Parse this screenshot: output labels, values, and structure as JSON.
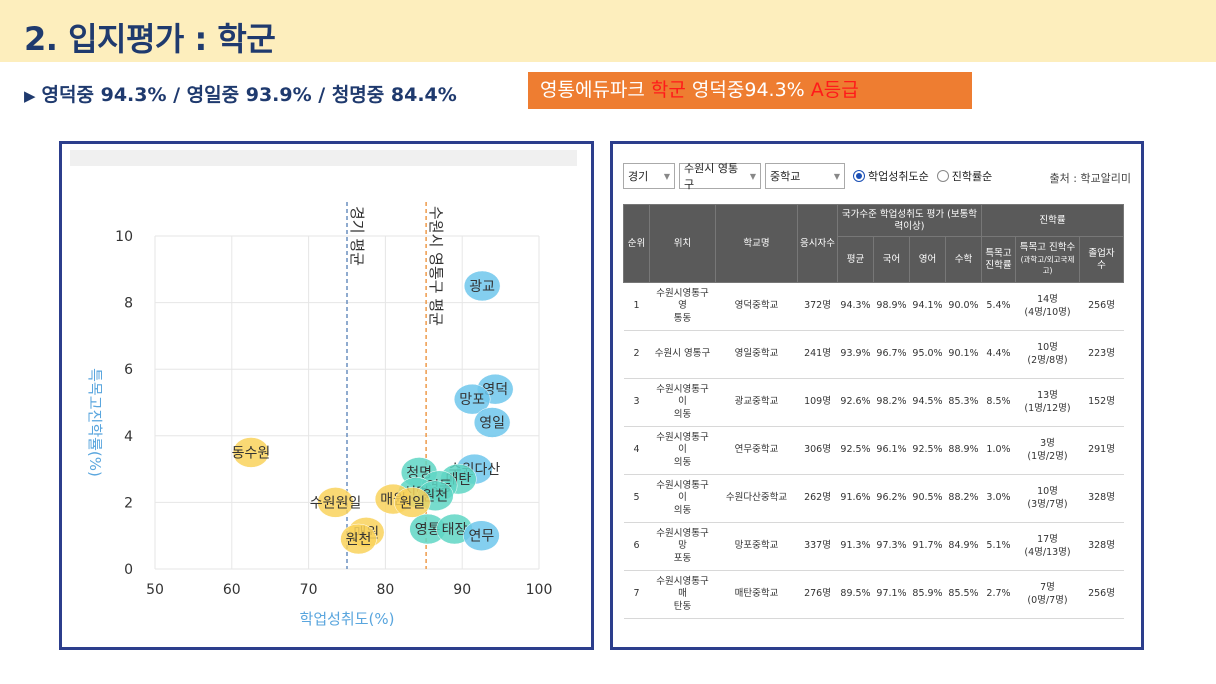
{
  "page_title": "2. 입지평가 : 학군",
  "subtitle": "영덕중 94.3% / 영일중 93.9% / 청명중 84.4%",
  "highlight": {
    "part1": "영통에듀파크 ",
    "part2": "학군",
    "part3": " 영덕중94.3% ",
    "part4": "A등급"
  },
  "colors": {
    "title": "#1f3a6e",
    "accent": "#ee7d31",
    "panel_border": "#2c3e8c",
    "bubble_blue": "#6fc7ec",
    "bubble_teal": "#5fd6c4",
    "bubble_yellow": "#f9d25c",
    "red": "#ff1a1a"
  },
  "chart_data": {
    "type": "scatter",
    "xlabel": "학업성취도(%)",
    "ylabel": "특목고진학률(%)",
    "xlim": [
      50,
      100
    ],
    "ylim": [
      0,
      10
    ],
    "xticks": [
      "50",
      "60",
      "70",
      "80",
      "90",
      "100"
    ],
    "yticks": [
      "0",
      "2",
      "4",
      "6",
      "8",
      "10"
    ],
    "grid": true,
    "reference_lines": [
      {
        "label": "경기 평균",
        "x": 75.0,
        "color": "#6a8fbf"
      },
      {
        "label": "수원시 영통구 평균",
        "x": 85.3,
        "color": "#ee9a4a"
      }
    ],
    "points": [
      {
        "label": "광교",
        "x": 92.6,
        "y": 8.5,
        "color": "#6fc7ec"
      },
      {
        "label": "영덕",
        "x": 94.3,
        "y": 5.4,
        "color": "#6fc7ec"
      },
      {
        "label": "망포",
        "x": 91.3,
        "y": 5.1,
        "color": "#6fc7ec"
      },
      {
        "label": "영일",
        "x": 93.9,
        "y": 4.4,
        "color": "#6fc7ec"
      },
      {
        "label": "동수원",
        "x": 62.5,
        "y": 3.5,
        "color": "#f9d25c"
      },
      {
        "label": "수원다산",
        "x": 91.6,
        "y": 3.0,
        "color": "#6fc7ec"
      },
      {
        "label": "청명",
        "x": 84.4,
        "y": 2.9,
        "color": "#5fd6c4"
      },
      {
        "label": "매탄",
        "x": 89.5,
        "y": 2.7,
        "color": "#5fd6c4"
      },
      {
        "label": "영동",
        "x": 87.0,
        "y": 2.5,
        "color": "#5fd6c4"
      },
      {
        "label": "신명",
        "x": 84.0,
        "y": 2.3,
        "color": "#5fd6c4"
      },
      {
        "label": "원천",
        "x": 86.5,
        "y": 2.2,
        "color": "#5fd6c4"
      },
      {
        "label": "매원",
        "x": 81.0,
        "y": 2.1,
        "color": "#f9d25c"
      },
      {
        "label": "원일",
        "x": 83.5,
        "y": 2.0,
        "color": "#f9d25c"
      },
      {
        "label": "수원원일",
        "x": 73.5,
        "y": 2.0,
        "color": "#f9d25c"
      },
      {
        "label": "영통",
        "x": 85.5,
        "y": 1.2,
        "color": "#5fd6c4"
      },
      {
        "label": "태장",
        "x": 89.0,
        "y": 1.2,
        "color": "#5fd6c4"
      },
      {
        "label": "연무",
        "x": 92.5,
        "y": 1.0,
        "color": "#6fc7ec"
      },
      {
        "label": "매원",
        "x": 77.5,
        "y": 1.1,
        "color": "#f9d25c"
      },
      {
        "label": "원천",
        "x": 76.5,
        "y": 0.9,
        "color": "#f9d25c"
      }
    ]
  },
  "table_panel": {
    "filters": {
      "region": "경기",
      "district": "수원시 영통구",
      "level": "중학교"
    },
    "radio": {
      "opt1": "학업성취도순",
      "opt2": "진학률순"
    },
    "source": "출처 : 학교알리미",
    "headers": {
      "rank": "순위",
      "location": "위치",
      "school": "학교명",
      "test_count": "응시자수",
      "achievement_group": "국가수준 학업성취도 평가 (보통학력이상)",
      "avg": "평균",
      "korean": "국어",
      "english": "영어",
      "math": "수학",
      "advance_group": "진학률",
      "special_rate_l1": "특목고",
      "special_rate_l2": "진학률",
      "special_count_l1": "특목고 진학수",
      "special_count_l2": "(과학고/외고국제고)",
      "graduates_l1": "졸업자",
      "graduates_l2": "수"
    },
    "rows": [
      {
        "rank": "1",
        "loc1": "수원시영통구 영",
        "loc2": "통동",
        "school": "영덕중학교",
        "n": "372명",
        "avg": "94.3%",
        "kor": "98.9%",
        "eng": "94.1%",
        "math": "90.0%",
        "rate": "5.4%",
        "cnt1": "14명",
        "cnt2": "(4명/10명)",
        "grad": "256명"
      },
      {
        "rank": "2",
        "loc1": "수원시 영통구",
        "loc2": "",
        "school": "영일중학교",
        "n": "241명",
        "avg": "93.9%",
        "kor": "96.7%",
        "eng": "95.0%",
        "math": "90.1%",
        "rate": "4.4%",
        "cnt1": "10명",
        "cnt2": "(2명/8명)",
        "grad": "223명"
      },
      {
        "rank": "3",
        "loc1": "수원시영통구 이",
        "loc2": "의동",
        "school": "광교중학교",
        "n": "109명",
        "avg": "92.6%",
        "kor": "98.2%",
        "eng": "94.5%",
        "math": "85.3%",
        "rate": "8.5%",
        "cnt1": "13명",
        "cnt2": "(1명/12명)",
        "grad": "152명"
      },
      {
        "rank": "4",
        "loc1": "수원시영통구 이",
        "loc2": "의동",
        "school": "연무중학교",
        "n": "306명",
        "avg": "92.5%",
        "kor": "96.1%",
        "eng": "92.5%",
        "math": "88.9%",
        "rate": "1.0%",
        "cnt1": "3명",
        "cnt2": "(1명/2명)",
        "grad": "291명"
      },
      {
        "rank": "5",
        "loc1": "수원시영통구 이",
        "loc2": "의동",
        "school": "수원다산중학교",
        "n": "262명",
        "avg": "91.6%",
        "kor": "96.2%",
        "eng": "90.5%",
        "math": "88.2%",
        "rate": "3.0%",
        "cnt1": "10명",
        "cnt2": "(3명/7명)",
        "grad": "328명"
      },
      {
        "rank": "6",
        "loc1": "수원시영통구 망",
        "loc2": "포동",
        "school": "망포중학교",
        "n": "337명",
        "avg": "91.3%",
        "kor": "97.3%",
        "eng": "91.7%",
        "math": "84.9%",
        "rate": "5.1%",
        "cnt1": "17명",
        "cnt2": "(4명/13명)",
        "grad": "328명"
      },
      {
        "rank": "7",
        "loc1": "수원시영통구 매",
        "loc2": "탄동",
        "school": "매탄중학교",
        "n": "276명",
        "avg": "89.5%",
        "kor": "97.1%",
        "eng": "85.9%",
        "math": "85.5%",
        "rate": "2.7%",
        "cnt1": "7명",
        "cnt2": "(0명/7명)",
        "grad": "256명"
      }
    ]
  }
}
